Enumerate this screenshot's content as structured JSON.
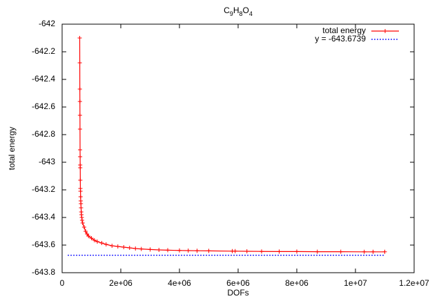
{
  "chart_data": {
    "type": "line",
    "title": "C9H8O4",
    "x_label": "DOFs",
    "y_label": "total energy",
    "xlim": [
      0,
      12000000
    ],
    "ylim": [
      -643.8,
      -642
    ],
    "xticks": [
      0,
      {
        "value": 2000000,
        "label": "2e+06"
      },
      {
        "value": 4000000,
        "label": "4e+06"
      },
      {
        "value": 6000000,
        "label": "6e+06"
      },
      {
        "value": 8000000,
        "label": "8e+06"
      },
      {
        "value": 10000000,
        "label": "1e+07"
      },
      {
        "value": 12000000,
        "label": "1.2e+07"
      }
    ],
    "yticks": [
      -642,
      -642.2,
      -642.4,
      -642.6,
      -642.8,
      -643,
      -643.2,
      -643.4,
      -643.6,
      -643.8
    ],
    "legend": "top-right",
    "series": [
      {
        "name": "total energy",
        "color": "#ff0000",
        "style": "linespoints",
        "x": [
          600000,
          602000,
          604000,
          606000,
          608000,
          610000,
          612000,
          614000,
          616000,
          618000,
          620000,
          623000,
          626000,
          630000,
          634000,
          640000,
          646000,
          652000,
          660000,
          670000,
          680000,
          700000,
          750000,
          800000,
          850000,
          900000,
          1000000,
          1100000,
          1200000,
          1350000,
          1500000,
          1700000,
          1900000,
          2100000,
          2300000,
          2500000,
          2700000,
          3000000,
          3300000,
          3600000,
          4000000,
          4300000,
          4600000,
          5000000,
          5800000,
          5900000,
          6300000,
          6800000,
          7400000,
          8000000,
          8700000,
          9500000,
          10300000,
          10600000,
          11000000
        ],
        "values": [
          -642.1,
          -642.28,
          -642.47,
          -642.56,
          -642.66,
          -642.76,
          -642.91,
          -642.96,
          -643.02,
          -643.04,
          -643.13,
          -643.19,
          -643.21,
          -643.25,
          -643.28,
          -643.3,
          -643.33,
          -643.36,
          -643.38,
          -643.4,
          -643.42,
          -643.44,
          -643.47,
          -643.5,
          -643.52,
          -643.535,
          -643.55,
          -643.565,
          -643.575,
          -643.585,
          -643.595,
          -643.605,
          -643.61,
          -643.615,
          -643.62,
          -643.625,
          -643.628,
          -643.632,
          -643.635,
          -643.637,
          -643.639,
          -643.64,
          -643.641,
          -643.642,
          -643.644,
          -643.644,
          -643.645,
          -643.646,
          -643.647,
          -643.647,
          -643.648,
          -643.648,
          -643.649,
          -643.649,
          -643.649
        ]
      },
      {
        "name": "y = -643.6739",
        "color": "#0000ff",
        "style": "dotted",
        "x": [
          190000,
          11000000
        ],
        "values": [
          -643.6739,
          -643.6739
        ]
      }
    ]
  }
}
